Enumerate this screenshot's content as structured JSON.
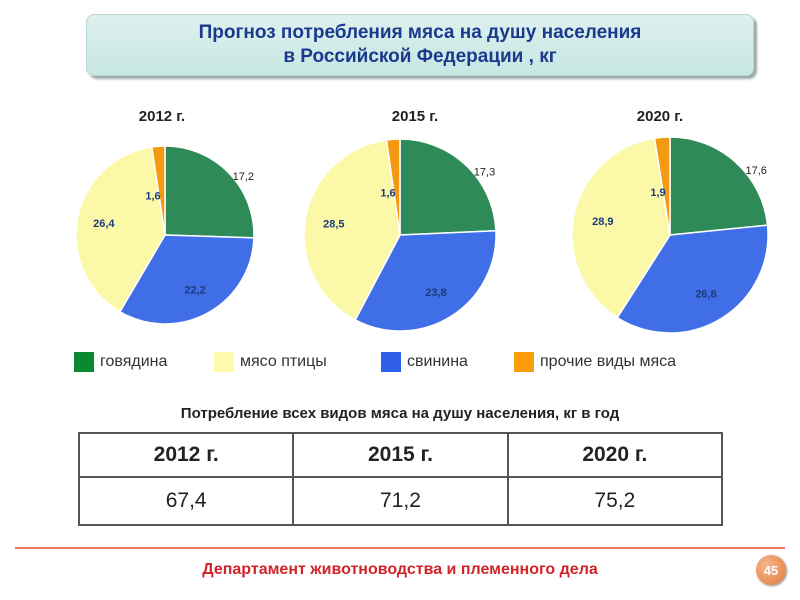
{
  "title": {
    "line1": "Прогноз потребления мяса на душу населения",
    "line2": "в Российской Федерации , кг"
  },
  "chart_data": [
    {
      "type": "pie",
      "title": "2012 г.",
      "categories": [
        "говядина",
        "свинина",
        "мясо птицы",
        "прочие виды мяса"
      ],
      "values": [
        17.2,
        22.2,
        26.4,
        1.6
      ],
      "labels": [
        "17,2",
        "22,2",
        "26,4",
        "1,6"
      ]
    },
    {
      "type": "pie",
      "title": "2015 г.",
      "categories": [
        "говядина",
        "свинина",
        "мясо птицы",
        "прочие виды мяса"
      ],
      "values": [
        17.3,
        23.8,
        28.5,
        1.6
      ],
      "labels": [
        "17,3",
        "23,8",
        "28,5",
        "1,6"
      ]
    },
    {
      "type": "pie",
      "title": "2020 г.",
      "categories": [
        "говядина",
        "свинина",
        "мясо птицы",
        "прочие виды мяса"
      ],
      "values": [
        17.6,
        26.8,
        28.9,
        1.9
      ],
      "labels": [
        "17,6",
        "26,8",
        "28,9",
        "1,9"
      ]
    }
  ],
  "colors": {
    "говядина": "#2e8b57",
    "свинина": "#3f6ee6",
    "мясо птицы": "#fbf9a8",
    "прочие виды мяса": "#f39a12"
  },
  "legend": [
    {
      "label": "говядина",
      "color": "#0a8a2e"
    },
    {
      "label": "мясо птицы",
      "color": "#fdfbb0"
    },
    {
      "label": "свинина",
      "color": "#2f5fe8"
    },
    {
      "label": "прочие виды мяса",
      "color": "#fb9c0a"
    }
  ],
  "table": {
    "title": "Потребление всех видов мяса на душу населения, кг в год",
    "headers": [
      "2012 г.",
      "2015 г.",
      "2020 г."
    ],
    "values": [
      "67,4",
      "71,2",
      "75,2"
    ]
  },
  "footer": "Департамент животноводства и племенного дела",
  "page_number": "45"
}
